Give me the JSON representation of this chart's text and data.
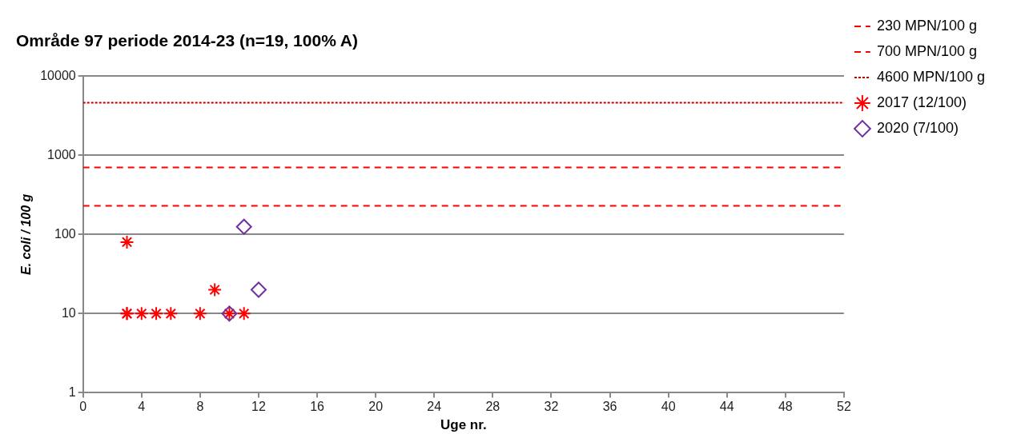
{
  "chart_data": {
    "type": "scatter",
    "title": "Område 97 periode 2014-23 (n=19, 100% A)",
    "xlabel": "Uge nr.",
    "ylabel": "E. coli / 100 g",
    "log": "y",
    "xlim": [
      0,
      52
    ],
    "xticks": [
      0,
      4,
      8,
      12,
      16,
      20,
      24,
      28,
      32,
      36,
      40,
      44,
      48,
      52
    ],
    "ylim": [
      1,
      10000
    ],
    "yticks": [
      1,
      10,
      100,
      1000,
      10000
    ],
    "grid": "y",
    "legend": "right",
    "ref_lines": [
      {
        "axis": "y",
        "value": 230,
        "label": "230 MPN/100 g",
        "color": "#ff0000",
        "line_style": "dashed"
      },
      {
        "axis": "y",
        "value": 700,
        "label": "700 MPN/100 g",
        "color": "#ff0000",
        "line_style": "dashed"
      },
      {
        "axis": "y",
        "value": 4600,
        "label": "4600 MPN/100 g",
        "color": "#c00000",
        "line_style": "dotted"
      }
    ],
    "series": [
      {
        "name": "2017 (12/100)",
        "color": "#ff0000",
        "marker": "cross",
        "x": [
          3,
          3,
          3,
          4,
          5,
          6,
          8,
          9,
          10,
          11
        ],
        "values": [
          80,
          10,
          10,
          10,
          10,
          10,
          10,
          20,
          10,
          10
        ]
      },
      {
        "name": "2020 (7/100)",
        "color": "#7030a0",
        "marker": "diamond",
        "x": [
          10,
          11,
          12
        ],
        "values": [
          10,
          125,
          20
        ]
      }
    ]
  }
}
